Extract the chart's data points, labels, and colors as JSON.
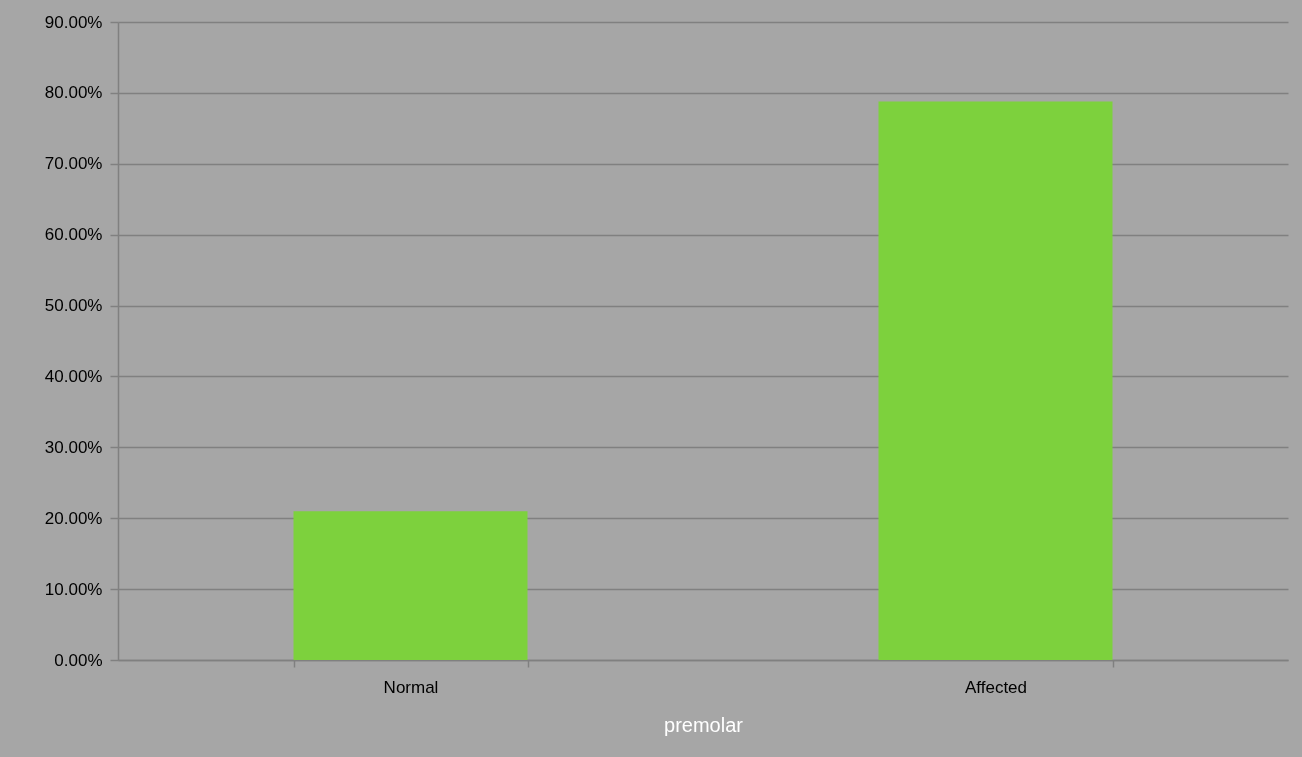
{
  "chart_data": {
    "type": "bar",
    "xlabel": "premolar",
    "categories": [
      "Normal",
      "Affected"
    ],
    "values": [
      21.0,
      78.8
    ],
    "color": "#7dd13d",
    "ylim": [
      0,
      90
    ],
    "yticks": [
      {
        "value": 0,
        "label": "0.00%"
      },
      {
        "value": 10,
        "label": "10.00%"
      },
      {
        "value": 20,
        "label": "20.00%"
      },
      {
        "value": 30,
        "label": "30.00%"
      },
      {
        "value": 40,
        "label": "40.00%"
      },
      {
        "value": 50,
        "label": "50.00%"
      },
      {
        "value": 60,
        "label": "60.00%"
      },
      {
        "value": 70,
        "label": "70.00%"
      },
      {
        "value": 80,
        "label": "80.00%"
      },
      {
        "value": 90,
        "label": "90.00%"
      }
    ],
    "grid": "y"
  }
}
